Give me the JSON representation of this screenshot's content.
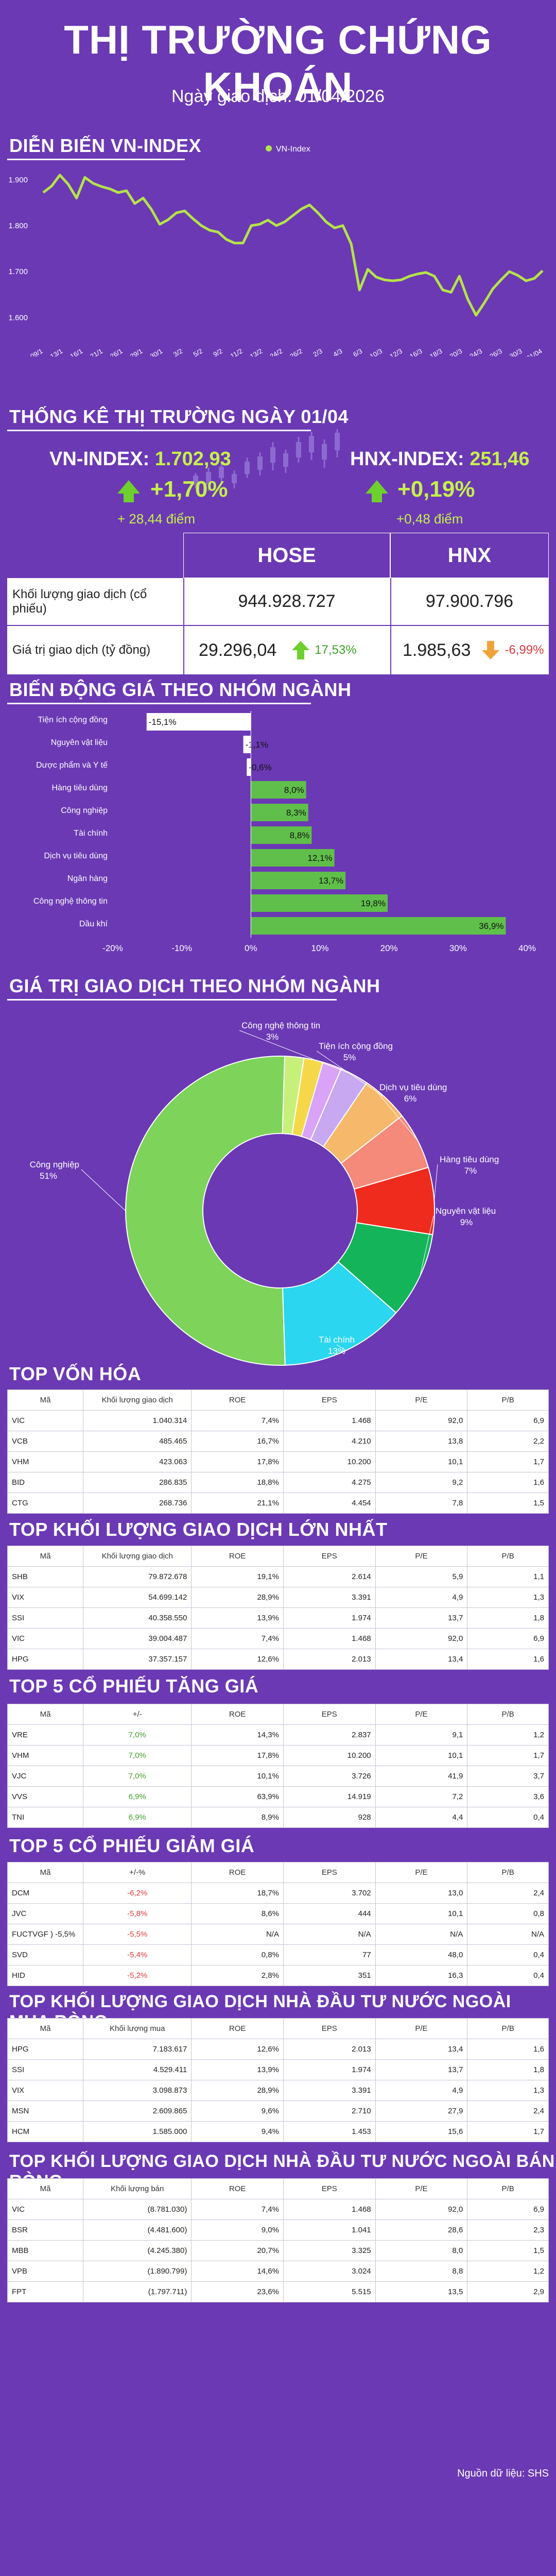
{
  "header": {
    "title": "THỊ TRƯỜNG CHỨNG KHOÁN",
    "subtitle": "Ngày giao dịch: 01/04/2026"
  },
  "vnindex_chart": {
    "section_title": "DIỄN BIẾN VN-INDEX",
    "legend": "VN-Index",
    "colors": {
      "line": "#b5e34a"
    },
    "chart_data": {
      "type": "line",
      "title": "DIỄN BIẾN VN-INDEX",
      "series": [
        {
          "name": "VN-Index",
          "values": [
            1872,
            1886,
            1910,
            1890,
            1860,
            1905,
            1892,
            1885,
            1880,
            1872,
            1876,
            1848,
            1860,
            1835,
            1803,
            1813,
            1828,
            1832,
            1815,
            1800,
            1790,
            1786,
            1770,
            1762,
            1762,
            1800,
            1803,
            1812,
            1800,
            1808,
            1822,
            1836,
            1845,
            1828,
            1808,
            1795,
            1800,
            1760,
            1660,
            1705,
            1688,
            1682,
            1680,
            1682,
            1690,
            1695,
            1698,
            1690,
            1660,
            1655,
            1690,
            1640,
            1605,
            1632,
            1662,
            1682,
            1700,
            1692,
            1680,
            1685,
            1702
          ]
        }
      ],
      "x_labels": [
        "09/1",
        "13/1",
        "16/1",
        "21/1",
        "26/1",
        "29/1",
        "30/1",
        "3/2",
        "5/2",
        "9/2",
        "11/2",
        "13/2",
        "24/2",
        "26/2",
        "2/3",
        "4/3",
        "6/3",
        "10/3",
        "12/3",
        "16/3",
        "18/3",
        "20/3",
        "24/3",
        "26/3",
        "30/3",
        "01/04"
      ],
      "ylim": [
        1560,
        1930
      ],
      "yticks": [
        1600,
        1700,
        1800,
        1900
      ],
      "ytick_labels": [
        "1.600",
        "1.700",
        "1.800",
        "1.900"
      ],
      "grid": false
    }
  },
  "stats": {
    "section_title": "THỐNG KÊ THỊ TRƯỜNG NGÀY 01/04",
    "vn_label": "VN-INDEX:",
    "vn_value": "1.702,93",
    "vn_pct": "+1,70%",
    "vn_pts": "+ 28,44 điểm",
    "hnx_label": "HNX-INDEX:",
    "hnx_value": "251,46",
    "hnx_pct": "+0,19%",
    "hnx_pts": "+0,48 điểm",
    "col_hose": "HOSE",
    "col_hnx": "HNX",
    "row1_label": "Khối lượng giao dịch (cổ phiếu)",
    "row1_hose": "944.928.727",
    "row1_hnx": "97.900.796",
    "row2_label": "Giá trị giao dịch (tỷ đồng)",
    "row2_hose": "29.296,04",
    "row2_hose_pct": "17,53%",
    "row2_hnx": "1.985,63",
    "row2_hnx_pct": "-6,99%"
  },
  "sector_change": {
    "section_title": "BIẾN ĐỘNG GIÁ THEO NHÓM NGÀNH",
    "colors": {
      "pos": "#5fbf4a",
      "neg": "#e53935"
    },
    "chart_data": {
      "type": "bar",
      "orientation": "horizontal",
      "categories": [
        "Tiện ích cộng đồng",
        "Nguyên vật liệu",
        "Dược phẩm và Y tế",
        "Hàng tiêu dùng",
        "Công nghiệp",
        "Tài chính",
        "Dịch vụ tiêu dùng",
        "Ngân hàng",
        "Công nghệ thông tin",
        "Dầu khí"
      ],
      "values": [
        -15.1,
        -1.1,
        -0.6,
        8.0,
        8.3,
        8.8,
        12.1,
        13.7,
        19.8,
        36.9
      ],
      "value_labels": [
        "-15,1%",
        "-1,1%",
        "-0,6%",
        "8,0%",
        "8,3%",
        "8,8%",
        "12,1%",
        "13,7%",
        "19,8%",
        "36,9%"
      ],
      "xlim": [
        -20,
        40
      ],
      "xticks": [
        -20,
        -10,
        0,
        10,
        20,
        30,
        40
      ],
      "xtick_labels": [
        "-20%",
        "-10%",
        "0%",
        "10%",
        "20%",
        "30%",
        "40%"
      ]
    }
  },
  "sector_value": {
    "section_title": "GIÁ TRỊ GIAO DỊCH THEO NHÓM NGÀNH",
    "chart_data": {
      "type": "pie",
      "style": "donut",
      "categories": [
        "Công nghệ thông tin",
        "Tiện ích cộng đồng",
        "Dịch vụ tiêu dùng",
        "Hàng tiêu dùng",
        "Nguyên vật liệu",
        "Tài chính",
        "Công nghiệp"
      ],
      "values": [
        3,
        5,
        6,
        7,
        9,
        13,
        51
      ],
      "value_labels": [
        "3%",
        "5%",
        "6%",
        "7%",
        "9%",
        "13%",
        "51%"
      ],
      "small_slices": [
        2,
        2,
        2
      ],
      "colors": [
        "#c8a8f0",
        "#f6b86a",
        "#f58a7a",
        "#ef2b1e",
        "#14b45a",
        "#2ad6f0",
        "#7ed35a",
        "#c6f07a",
        "#f5d84a",
        "#d9a3f7"
      ]
    }
  },
  "top_vonhoa": {
    "section_title": "TOP VỐN HÓA",
    "headers": [
      "Mã",
      "Khối lượng giao dịch",
      "ROE",
      "EPS",
      "P/E",
      "P/B"
    ],
    "rows": [
      [
        "VIC",
        "1.040.314",
        "7,4%",
        "1.468",
        "92,0",
        "6,9"
      ],
      [
        "VCB",
        "485.465",
        "16,7%",
        "4.210",
        "13,8",
        "2,2"
      ],
      [
        "VHM",
        "423.063",
        "17,8%",
        "10.200",
        "10,1",
        "1,7"
      ],
      [
        "BID",
        "286.835",
        "18,8%",
        "4.275",
        "9,2",
        "1,6"
      ],
      [
        "CTG",
        "268.736",
        "21,1%",
        "4.454",
        "7,8",
        "1,5"
      ]
    ]
  },
  "top_kl": {
    "section_title": "TOP KHỐI LƯỢNG GIAO DỊCH LỚN NHẤT",
    "headers": [
      "Mã",
      "Khối lượng giao dịch",
      "ROE",
      "EPS",
      "P/E",
      "P/B"
    ],
    "rows": [
      [
        "SHB",
        "79.872.678",
        "19,1%",
        "2.614",
        "5,9",
        "1,1"
      ],
      [
        "VIX",
        "54.699.142",
        "28,9%",
        "3.391",
        "4,9",
        "1,3"
      ],
      [
        "SSI",
        "40.358.550",
        "13,9%",
        "1.974",
        "13,7",
        "1,8"
      ],
      [
        "VIC",
        "39.004.487",
        "7,4%",
        "1.468",
        "92,0",
        "6,9"
      ],
      [
        "HPG",
        "37.357.157",
        "12,6%",
        "2.013",
        "13,4",
        "1,6"
      ]
    ]
  },
  "top_tang": {
    "section_title": "TOP 5 CỔ PHIẾU TĂNG GIÁ",
    "headers": [
      "Mã",
      "+/-",
      "ROE",
      "EPS",
      "P/E",
      "P/B"
    ],
    "rows": [
      [
        "VRE",
        "7,0%",
        "14,3%",
        "2.837",
        "9,1",
        "1,2"
      ],
      [
        "VHM",
        "7,0%",
        "17,8%",
        "10.200",
        "10,1",
        "1,7"
      ],
      [
        "VJC",
        "7,0%",
        "10,1%",
        "3.726",
        "41,9",
        "3,7"
      ],
      [
        "VVS",
        "6,9%",
        "63,9%",
        "14.919",
        "7,2",
        "3,6"
      ],
      [
        "TNI",
        "6,9%",
        "8,9%",
        "928",
        "4,4",
        "0,4"
      ]
    ]
  },
  "top_giam": {
    "section_title": "TOP 5 CỔ PHIẾU GIẢM GIÁ",
    "headers": [
      "Mã",
      "+/-%",
      "ROE",
      "EPS",
      "P/E",
      "P/B"
    ],
    "rows": [
      [
        "DCM",
        "-6,2%",
        "18,7%",
        "3.702",
        "13,0",
        "2,4"
      ],
      [
        "JVC",
        "-5,8%",
        "8,6%",
        "444",
        "10,1",
        "0,8"
      ],
      [
        "FUCTVGF ) -5,5%",
        "-5,5%",
        "N/A",
        "N/A",
        "N/A",
        "N/A"
      ],
      [
        "SVD",
        "-5,4%",
        "0,8%",
        "77",
        "48,0",
        "0,4"
      ],
      [
        "HID",
        "-5,2%",
        "2,8%",
        "351",
        "16,3",
        "0,4"
      ]
    ]
  },
  "nn_mua": {
    "section_title": "TOP KHỐI LƯỢNG GIAO DỊCH NHÀ ĐẦU TƯ NƯỚC NGOÀI MUA RÒNG",
    "headers": [
      "Mã",
      "Khối lượng mua",
      "ROE",
      "EPS",
      "P/E",
      "P/B"
    ],
    "rows": [
      [
        "HPG",
        "7.183.617",
        "12,6%",
        "2.013",
        "13,4",
        "1,6"
      ],
      [
        "SSI",
        "4.529.411",
        "13,9%",
        "1.974",
        "13,7",
        "1,8"
      ],
      [
        "VIX",
        "3.098.873",
        "28,9%",
        "3.391",
        "4,9",
        "1,3"
      ],
      [
        "MSN",
        "2.609.865",
        "9,6%",
        "2.710",
        "27,9",
        "2,4"
      ],
      [
        "HCM",
        "1.585.000",
        "9,4%",
        "1.453",
        "15,6",
        "1,7"
      ]
    ]
  },
  "nn_ban": {
    "section_title": "TOP KHỐI LƯỢNG GIAO DỊCH NHÀ ĐẦU TƯ NƯỚC NGOÀI BÁN RÒNG",
    "headers": [
      "Mã",
      "Khối lượng bán",
      "ROE",
      "EPS",
      "P/E",
      "P/B"
    ],
    "rows": [
      [
        "VIC",
        "(8.781.030)",
        "7,4%",
        "1.468",
        "92,0",
        "6,9"
      ],
      [
        "BSR",
        "(4.481.600)",
        "9,0%",
        "1.041",
        "28,6",
        "2,3"
      ],
      [
        "MBB",
        "(4.245.380)",
        "20,7%",
        "3.325",
        "8,0",
        "1,5"
      ],
      [
        "VPB",
        "(1.890.799)",
        "14,6%",
        "3.024",
        "8,8",
        "1,2"
      ],
      [
        "FPT",
        "(1.797.711)",
        "23,6%",
        "5.515",
        "13,5",
        "2,9"
      ]
    ]
  },
  "footer": {
    "source": "Nguồn dữ liệu: SHS"
  }
}
